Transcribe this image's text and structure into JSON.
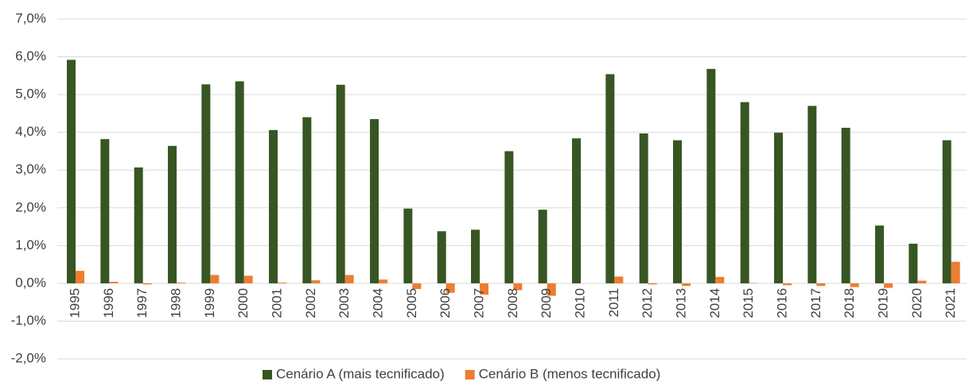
{
  "chart_data": {
    "type": "bar",
    "categories": [
      "1995",
      "1996",
      "1997",
      "1998",
      "1999",
      "2000",
      "2001",
      "2002",
      "2003",
      "2004",
      "2005",
      "2006",
      "2007",
      "2008",
      "2009",
      "2010",
      "2011",
      "2012",
      "2013",
      "2014",
      "2015",
      "2016",
      "2017",
      "2018",
      "2019",
      "2020",
      "2021"
    ],
    "series": [
      {
        "name": "Cenário A (mais tecnificado)",
        "color": "#375623",
        "values": [
          5.92,
          3.82,
          3.07,
          3.64,
          5.27,
          5.35,
          4.06,
          4.4,
          5.26,
          4.35,
          1.98,
          1.38,
          1.42,
          3.5,
          1.95,
          3.84,
          5.54,
          3.97,
          3.79,
          5.68,
          4.8,
          3.99,
          4.7,
          4.12,
          1.53,
          1.05,
          3.79
        ]
      },
      {
        "name": "Cenário B (menos tecnificado)",
        "color": "#ed7d31",
        "values": [
          0.33,
          0.04,
          -0.03,
          0.02,
          0.22,
          0.2,
          0.02,
          0.08,
          0.22,
          0.1,
          -0.15,
          -0.25,
          -0.3,
          -0.18,
          -0.33,
          0.0,
          0.18,
          -0.03,
          -0.07,
          0.17,
          0.01,
          -0.05,
          -0.07,
          -0.1,
          -0.12,
          0.07,
          0.57
        ]
      }
    ],
    "ylim": [
      -2,
      7
    ],
    "yticks": [
      {
        "value": -2,
        "label": "-2,0%"
      },
      {
        "value": -1,
        "label": "-1,0%"
      },
      {
        "value": 0,
        "label": "0,0%"
      },
      {
        "value": 1,
        "label": "1,0%"
      },
      {
        "value": 2,
        "label": "2,0%"
      },
      {
        "value": 3,
        "label": "3,0%"
      },
      {
        "value": 4,
        "label": "4,0%"
      },
      {
        "value": 5,
        "label": "5,0%"
      },
      {
        "value": 6,
        "label": "6,0%"
      },
      {
        "value": 7,
        "label": "7,0%"
      }
    ],
    "grid": true,
    "legend": "bottom"
  }
}
